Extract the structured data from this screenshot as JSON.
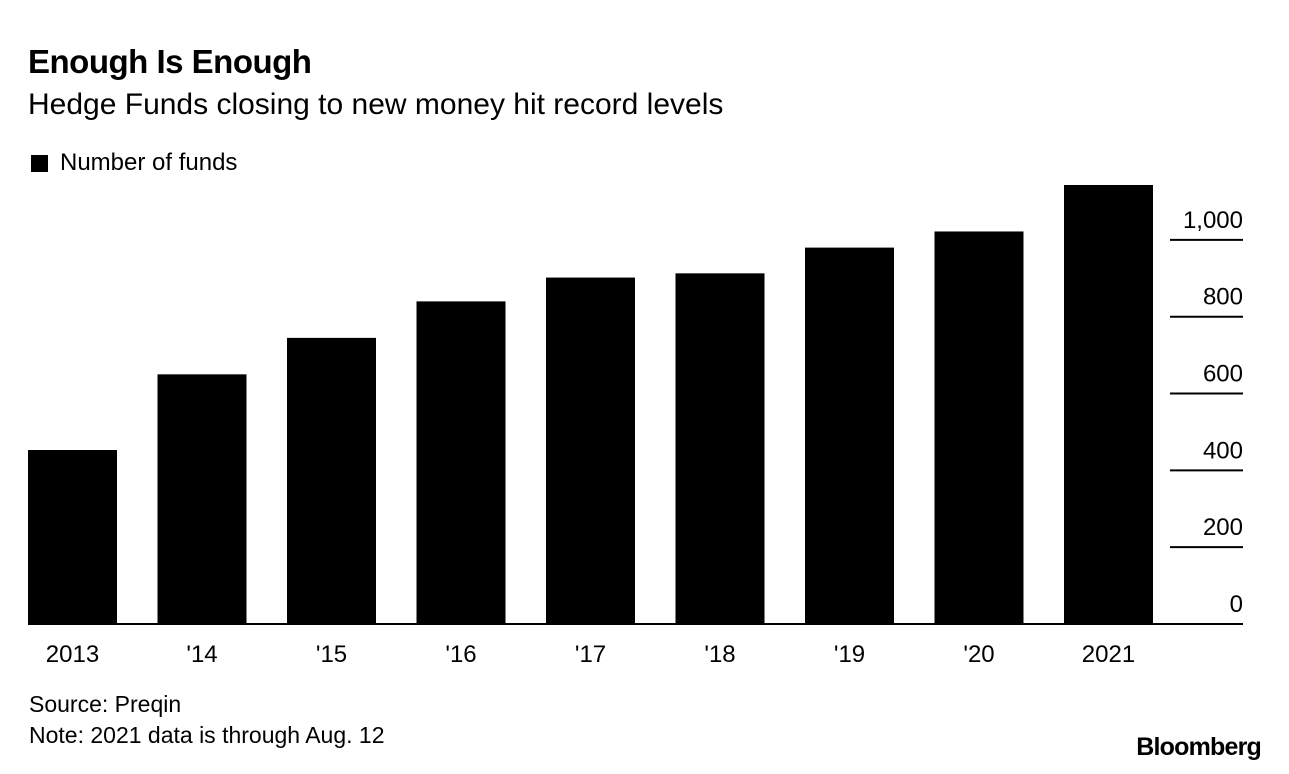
{
  "chart_data": {
    "type": "bar",
    "title": "Enough Is Enough",
    "subtitle": "Hedge Funds closing to new money hit record levels",
    "legend": [
      {
        "name": "Number of funds",
        "color": "#000000"
      }
    ],
    "categories": [
      "2013",
      "'14",
      "'15",
      "'16",
      "'17",
      "'18",
      "'19",
      "'20",
      "2021"
    ],
    "series": [
      {
        "name": "Number of funds",
        "values": [
          453,
          650,
          745,
          840,
          902,
          913,
          980,
          1022,
          1143
        ]
      }
    ],
    "ylim": [
      0,
      1143
    ],
    "yticks": [
      0,
      200,
      400,
      600,
      800,
      1000
    ],
    "ytick_labels": [
      "0",
      "200",
      "400",
      "600",
      "800",
      "1,000"
    ],
    "xlabel": "",
    "ylabel": "",
    "y_axis_side": "right",
    "grid": false
  },
  "footer": {
    "source": "Source: Preqin",
    "note": "Note: 2021 data is through Aug. 12",
    "brand": "Bloomberg"
  },
  "colors": {
    "bar": "#000000",
    "text": "#000000",
    "background": "#ffffff"
  }
}
